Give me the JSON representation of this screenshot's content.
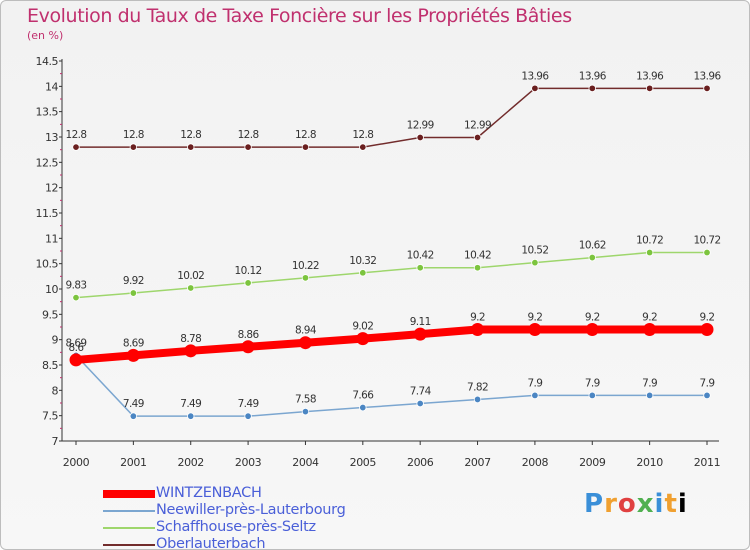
{
  "page": {
    "title": "Evolution du Taux de Taxe Foncière sur les Propriétés Bâties",
    "unit": "(en %)",
    "logo": [
      "P",
      "r",
      "o",
      "x",
      "i",
      "t",
      "i"
    ]
  },
  "chart_data": {
    "type": "line",
    "title": "Evolution du Taux de Taxe Foncière sur les Propriétés Bâties",
    "ylabel": "(en %)",
    "xlabel": "",
    "x": [
      "2000",
      "2001",
      "2002",
      "2003",
      "2004",
      "2005",
      "2006",
      "2007",
      "2008",
      "2009",
      "2010",
      "2011"
    ],
    "ylim": [
      7,
      14.5
    ],
    "yticks": [
      "7",
      "7.5",
      "8",
      "8.5",
      "9",
      "9.5",
      "10",
      "10.5",
      "11",
      "11.5",
      "12",
      "12.5",
      "13",
      "13.5",
      "14",
      "14.5"
    ],
    "ytick_values": [
      7,
      7.5,
      8,
      8.5,
      9,
      9.5,
      10,
      10.5,
      11,
      11.5,
      12,
      12.5,
      13,
      13.5,
      14,
      14.5
    ],
    "series": [
      {
        "name": "Oberlauterbach",
        "color": "#722c2c",
        "dot_color": "#6a1f1f",
        "values": [
          12.8,
          12.8,
          12.8,
          12.8,
          12.8,
          12.8,
          12.99,
          12.99,
          13.96,
          13.96,
          13.96,
          13.96
        ],
        "labels": [
          "12.8",
          "12.8",
          "12.8",
          "12.8",
          "12.8",
          "12.8",
          "12.99",
          "12.99",
          "13.96",
          "13.96",
          "13.96",
          "13.96"
        ]
      },
      {
        "name": "Schaffhouse-près-Seltz",
        "color": "#9ed66c",
        "dot_color": "#7cc43e",
        "values": [
          9.83,
          9.92,
          10.02,
          10.12,
          10.22,
          10.32,
          10.42,
          10.42,
          10.52,
          10.62,
          10.72,
          10.72
        ],
        "labels": [
          "9.83",
          "9.92",
          "10.02",
          "10.12",
          "10.22",
          "10.32",
          "10.42",
          "10.42",
          "10.52",
          "10.62",
          "10.72",
          "10.72"
        ]
      },
      {
        "name": "Neewiller-près-Lauterbourg",
        "color": "#7ba6d0",
        "dot_color": "#4b86c3",
        "values": [
          8.69,
          7.49,
          7.49,
          7.49,
          7.58,
          7.66,
          7.74,
          7.82,
          7.9,
          7.9,
          7.9,
          7.9
        ],
        "labels": [
          "8.69",
          "7.49",
          "7.49",
          "7.49",
          "7.58",
          "7.66",
          "7.74",
          "7.82",
          "7.9",
          "7.9",
          "7.9",
          "7.9"
        ]
      },
      {
        "name": "WINTZENBACH",
        "color": "#ff0000",
        "dot_color": "#ff0000",
        "values": [
          8.6,
          8.69,
          8.78,
          8.86,
          8.94,
          9.02,
          9.11,
          9.2,
          9.2,
          9.2,
          9.2,
          9.2
        ],
        "labels": [
          "8.6",
          "8.69",
          "8.78",
          "8.86",
          "8.94",
          "9.02",
          "9.11",
          "9.2",
          "9.2",
          "9.2",
          "9.2",
          "9.2"
        ]
      }
    ],
    "legend": [
      {
        "name": "WINTZENBACH",
        "color": "#ff0000"
      },
      {
        "name": "Neewiller-près-Lauterbourg",
        "color": "#7ba6d0"
      },
      {
        "name": "Schaffhouse-près-Seltz",
        "color": "#9ed66c"
      },
      {
        "name": "Oberlauterbach",
        "color": "#722c2c"
      }
    ]
  }
}
